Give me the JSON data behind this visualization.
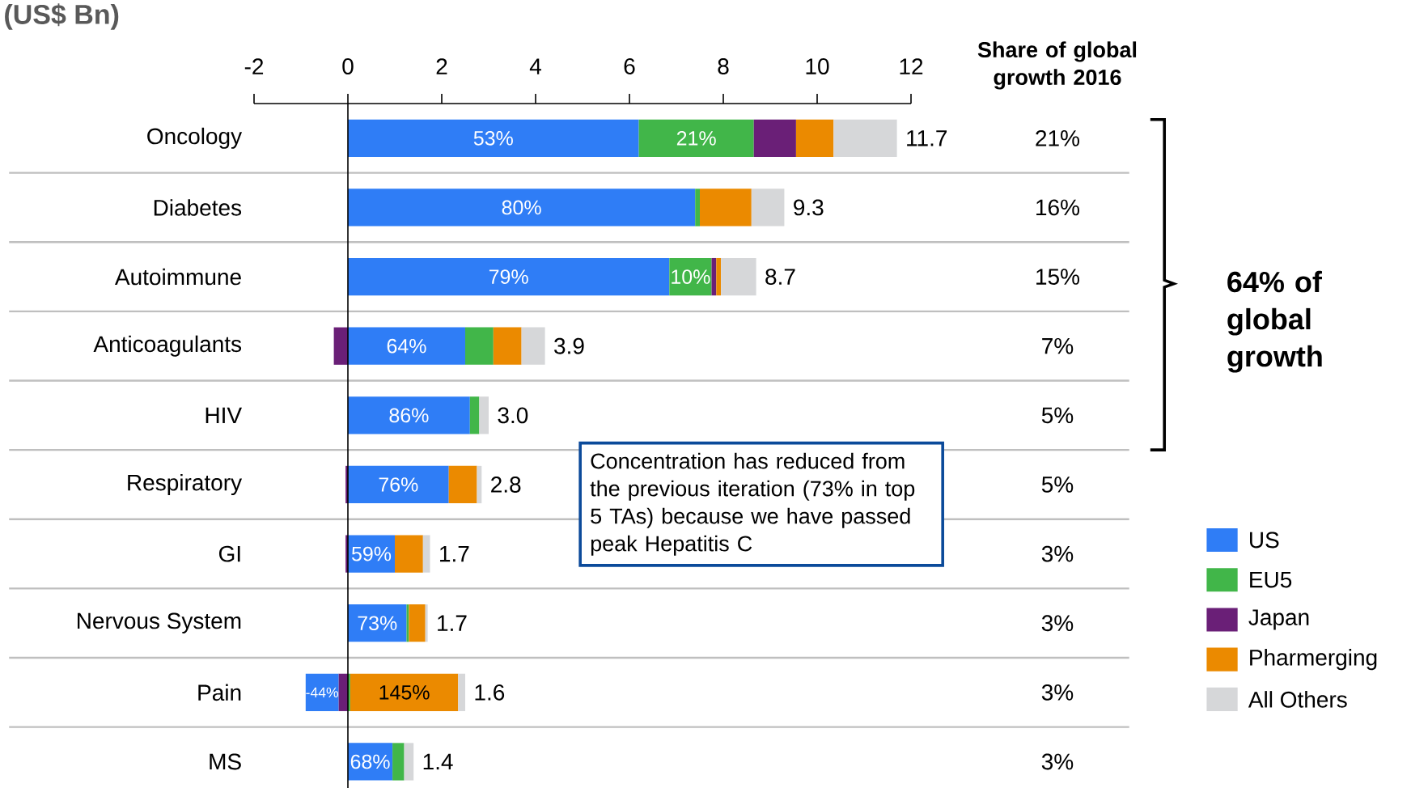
{
  "chart_data": {
    "type": "bar",
    "title": "(US$ Bn)",
    "orientation": "horizontal",
    "stacked": true,
    "categories": [
      "Oncology",
      "Diabetes",
      "Autoimmune",
      "Anticoagulants",
      "HIV",
      "Respiratory",
      "GI",
      "Nervous System",
      "Pain",
      "MS"
    ],
    "series": [
      {
        "name": "US",
        "color": "#2f7df6",
        "values": [
          6.2,
          7.4,
          6.85,
          2.5,
          2.6,
          2.15,
          1.0,
          1.25,
          -0.7,
          0.95
        ]
      },
      {
        "name": "EU5",
        "color": "#41b649",
        "values": [
          2.45,
          0.1,
          0.9,
          0.6,
          0.2,
          0,
          0,
          0.05,
          0.05,
          0.25
        ]
      },
      {
        "name": "Japan",
        "color": "#6a1f77",
        "values": [
          0.9,
          0,
          0.1,
          -0.3,
          0,
          -0.05,
          -0.05,
          0,
          -0.2,
          0
        ]
      },
      {
        "name": "Pharmerging",
        "color": "#eb8a00",
        "values": [
          0.8,
          1.1,
          0.1,
          0.6,
          0,
          0.6,
          0.6,
          0.35,
          2.3,
          0
        ]
      },
      {
        "name": "All Others",
        "color": "#d6d7d9",
        "values": [
          1.35,
          0.7,
          0.75,
          0.5,
          0.2,
          0.1,
          0.15,
          0.05,
          0.15,
          0.2
        ]
      }
    ],
    "totals": [
      "11.7",
      "9.3",
      "8.7",
      "3.9",
      "3.0",
      "2.8",
      "1.7",
      "1.7",
      "1.6",
      "1.4"
    ],
    "xlim": [
      -2,
      12
    ],
    "xticks": [
      -2,
      0,
      2,
      4,
      6,
      8,
      10,
      12
    ],
    "grid": "y",
    "legend": "bottom right",
    "ref_lines": [
      {
        "axis": "x",
        "value": 0
      }
    ],
    "annotations": [
      "Share of global growth 2016",
      "21%",
      "16%",
      "15%",
      "7%",
      "5%",
      "5%",
      "3%",
      "3%",
      "3%",
      "3%",
      "64% of global growth",
      "Concentration has reduced from the previous iteration (73% in top 5 TAs) because we have passed peak Hepatitis C",
      "53%",
      "21%",
      "80%",
      "79%",
      "10%",
      "64%",
      "86%",
      "76%",
      "59%",
      "73%",
      "-44%",
      "145%",
      "68%"
    ]
  }
}
